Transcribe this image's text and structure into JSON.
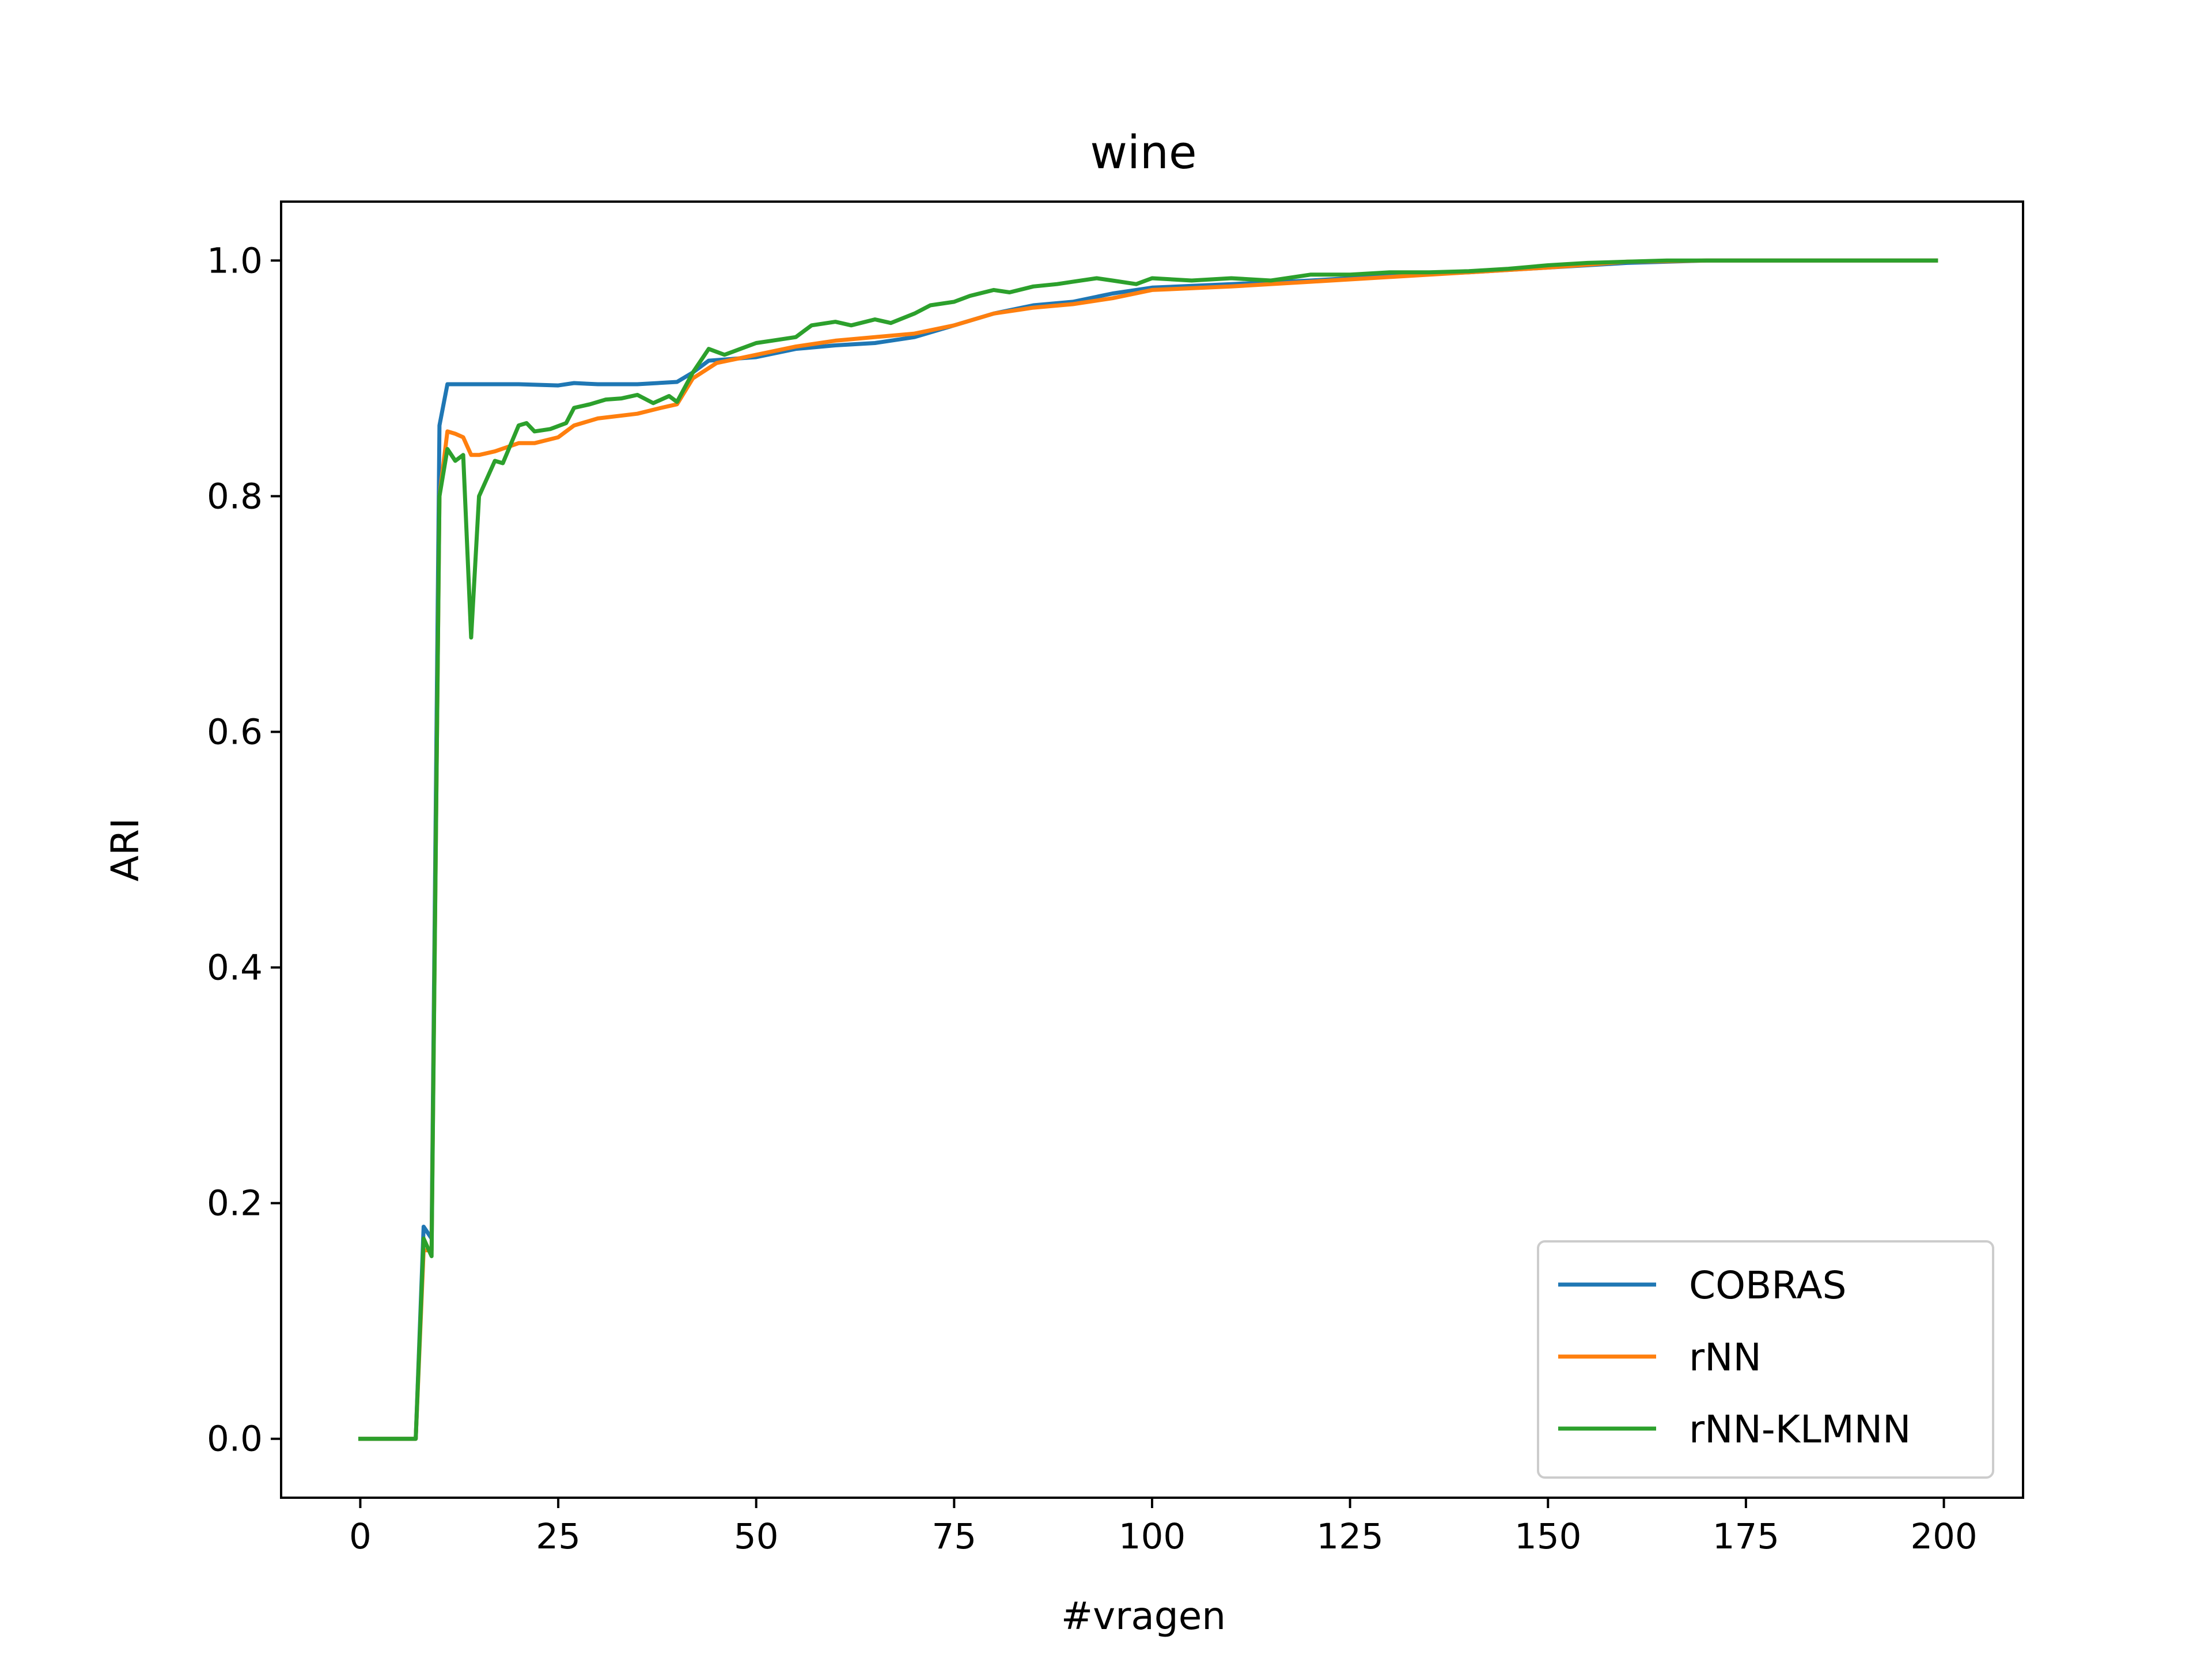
{
  "chart_data": {
    "type": "line",
    "title": "wine",
    "xlabel": "#vragen",
    "ylabel": "ARI",
    "xlim": [
      -10,
      210
    ],
    "ylim": [
      -0.05,
      1.05
    ],
    "xticks": [
      0,
      25,
      50,
      75,
      100,
      125,
      150,
      175,
      200
    ],
    "yticks": [
      0.0,
      0.2,
      0.4,
      0.6,
      0.8,
      1.0
    ],
    "xtick_labels": [
      "0",
      "25",
      "50",
      "75",
      "100",
      "125",
      "150",
      "175",
      "200"
    ],
    "ytick_labels": [
      "0.0",
      "0.2",
      "0.4",
      "0.6",
      "0.8",
      "1.0"
    ],
    "grid": false,
    "legend": "lower-right",
    "series": [
      {
        "name": "COBRAS",
        "color": "#1f77b4",
        "x": [
          0,
          7,
          8,
          9,
          10,
          11,
          15,
          20,
          25,
          27,
          30,
          35,
          40,
          42,
          44,
          50,
          55,
          60,
          65,
          70,
          75,
          80,
          85,
          90,
          95,
          100,
          110,
          120,
          130,
          140,
          150,
          160,
          170,
          180,
          199
        ],
        "y": [
          0.0,
          0.0,
          0.18,
          0.17,
          0.86,
          0.895,
          0.895,
          0.895,
          0.894,
          0.896,
          0.895,
          0.895,
          0.897,
          0.905,
          0.915,
          0.918,
          0.925,
          0.928,
          0.93,
          0.935,
          0.945,
          0.955,
          0.962,
          0.965,
          0.972,
          0.977,
          0.98,
          0.983,
          0.987,
          0.99,
          0.994,
          0.998,
          1.0,
          1.0,
          1.0
        ]
      },
      {
        "name": "rNN",
        "color": "#ff7f0e",
        "x": [
          0,
          7,
          8,
          9,
          10,
          11,
          12,
          13,
          14,
          15,
          17,
          20,
          22,
          25,
          27,
          30,
          35,
          38,
          40,
          42,
          45,
          50,
          55,
          60,
          65,
          70,
          75,
          80,
          85,
          90,
          95,
          100,
          110,
          120,
          130,
          140,
          150,
          160,
          170,
          180,
          199
        ],
        "y": [
          0.0,
          0.0,
          0.16,
          0.16,
          0.8,
          0.855,
          0.853,
          0.85,
          0.835,
          0.835,
          0.838,
          0.845,
          0.845,
          0.85,
          0.86,
          0.866,
          0.87,
          0.875,
          0.878,
          0.9,
          0.913,
          0.92,
          0.927,
          0.932,
          0.935,
          0.938,
          0.945,
          0.955,
          0.96,
          0.963,
          0.968,
          0.975,
          0.978,
          0.982,
          0.986,
          0.99,
          0.994,
          0.999,
          1.0,
          1.0,
          1.0
        ]
      },
      {
        "name": "rNN-KLMNN",
        "color": "#2ca02c",
        "x": [
          0,
          7,
          8,
          9,
          10,
          11,
          12,
          13,
          14,
          15,
          17,
          18,
          20,
          21,
          22,
          24,
          26,
          27,
          29,
          31,
          33,
          35,
          37,
          39,
          40,
          42,
          44,
          46,
          48,
          50,
          52,
          55,
          57,
          60,
          62,
          65,
          67,
          70,
          72,
          75,
          77,
          80,
          82,
          85,
          88,
          90,
          93,
          95,
          98,
          100,
          105,
          110,
          115,
          120,
          125,
          130,
          135,
          140,
          145,
          150,
          155,
          160,
          165,
          170,
          180,
          199
        ],
        "y": [
          0.0,
          0.0,
          0.17,
          0.155,
          0.8,
          0.84,
          0.83,
          0.835,
          0.68,
          0.8,
          0.83,
          0.828,
          0.86,
          0.862,
          0.855,
          0.857,
          0.862,
          0.875,
          0.878,
          0.882,
          0.883,
          0.886,
          0.879,
          0.885,
          0.88,
          0.905,
          0.925,
          0.92,
          0.925,
          0.93,
          0.932,
          0.935,
          0.945,
          0.948,
          0.945,
          0.95,
          0.947,
          0.955,
          0.962,
          0.965,
          0.97,
          0.975,
          0.973,
          0.978,
          0.98,
          0.982,
          0.985,
          0.983,
          0.98,
          0.985,
          0.983,
          0.985,
          0.983,
          0.988,
          0.988,
          0.99,
          0.99,
          0.991,
          0.993,
          0.996,
          0.998,
          0.999,
          1.0,
          1.0,
          1.0,
          1.0
        ]
      }
    ]
  }
}
